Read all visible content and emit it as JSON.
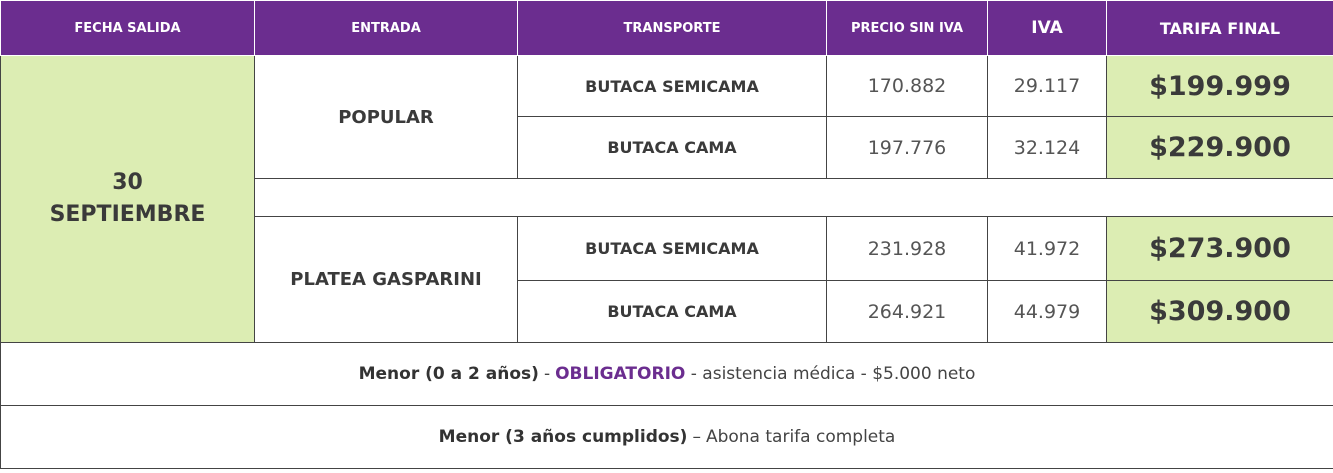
{
  "header": [
    "FECHA SALIDA",
    "ENTRADA",
    "TRANSPORTE",
    "PRECIO SIN IVA",
    "IVA",
    "TARIFA FINAL"
  ],
  "date": [
    "30",
    "SEPTIEMBRE"
  ],
  "sections": [
    {
      "entrada": "POPULAR",
      "rows": [
        [
          "BUTACA SEMICAMA",
          "170.882",
          "29.117",
          "$199.999"
        ],
        [
          "BUTACA CAMA",
          "197.776",
          "32.124",
          "$229.900"
        ]
      ]
    },
    {
      "entrada": "PLATEA GASPARINI",
      "rows": [
        [
          "BUTACA SEMICAMA",
          "231.928",
          "41.972",
          "$273.900"
        ],
        [
          "BUTACA CAMA",
          "264.921",
          "44.979",
          "$309.900"
        ]
      ]
    }
  ],
  "notes": [
    {
      "label": "Menor (0 a 2 años)",
      "separator": "-",
      "highlight": "OBLIGATORIO",
      "text": "- asistencia médica - $5.000 neto"
    },
    {
      "label": "Menor (3 años cumplidos)",
      "separator": "–",
      "text": "Abona tarifa completa"
    }
  ]
}
